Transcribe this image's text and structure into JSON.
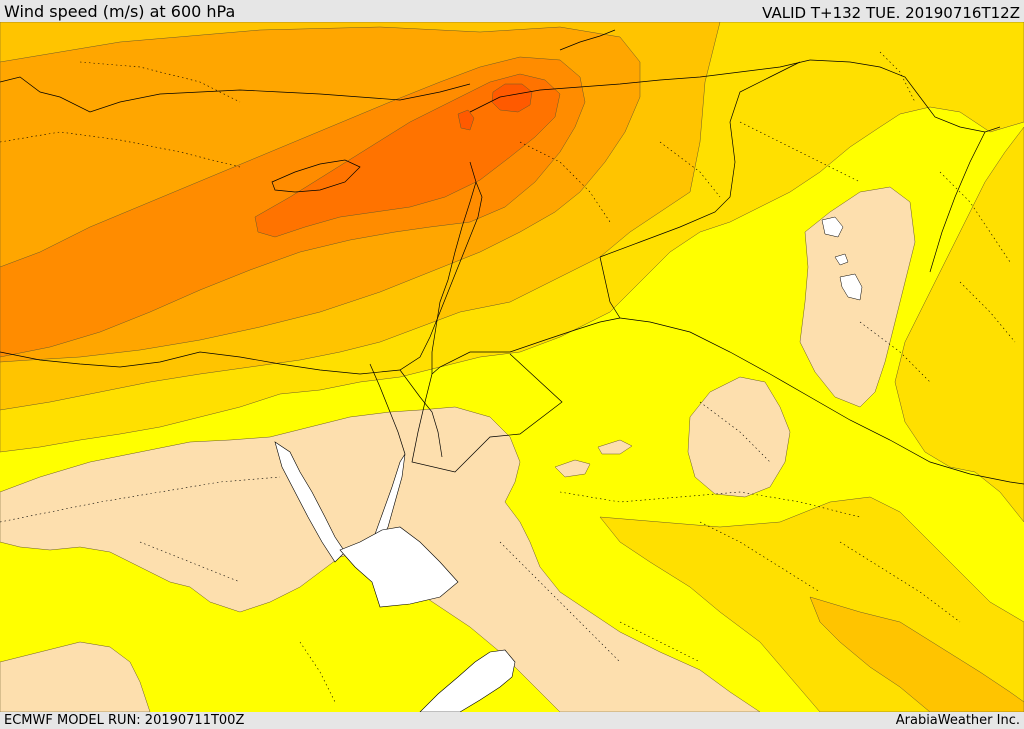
{
  "header": {
    "title": "Wind speed (m/s) at 600 hPa",
    "valid_time": "VALID T+132 TUE. 20190716T12Z"
  },
  "map": {
    "colors": {
      "calm_tan": "#fddfae",
      "yellow": "#ffff00",
      "gold": "#ffe000",
      "amber": "#ffc400",
      "orange_light": "#ffa600",
      "orange": "#ff8c00",
      "orange_dark": "#ff7300",
      "red_orange": "#ff5a00",
      "water": "#ffffff",
      "border": "#000000"
    }
  },
  "footer": {
    "model_run": "ECMWF MODEL RUN: 20190711T00Z",
    "brand": "ArabiaWeather Inc."
  }
}
